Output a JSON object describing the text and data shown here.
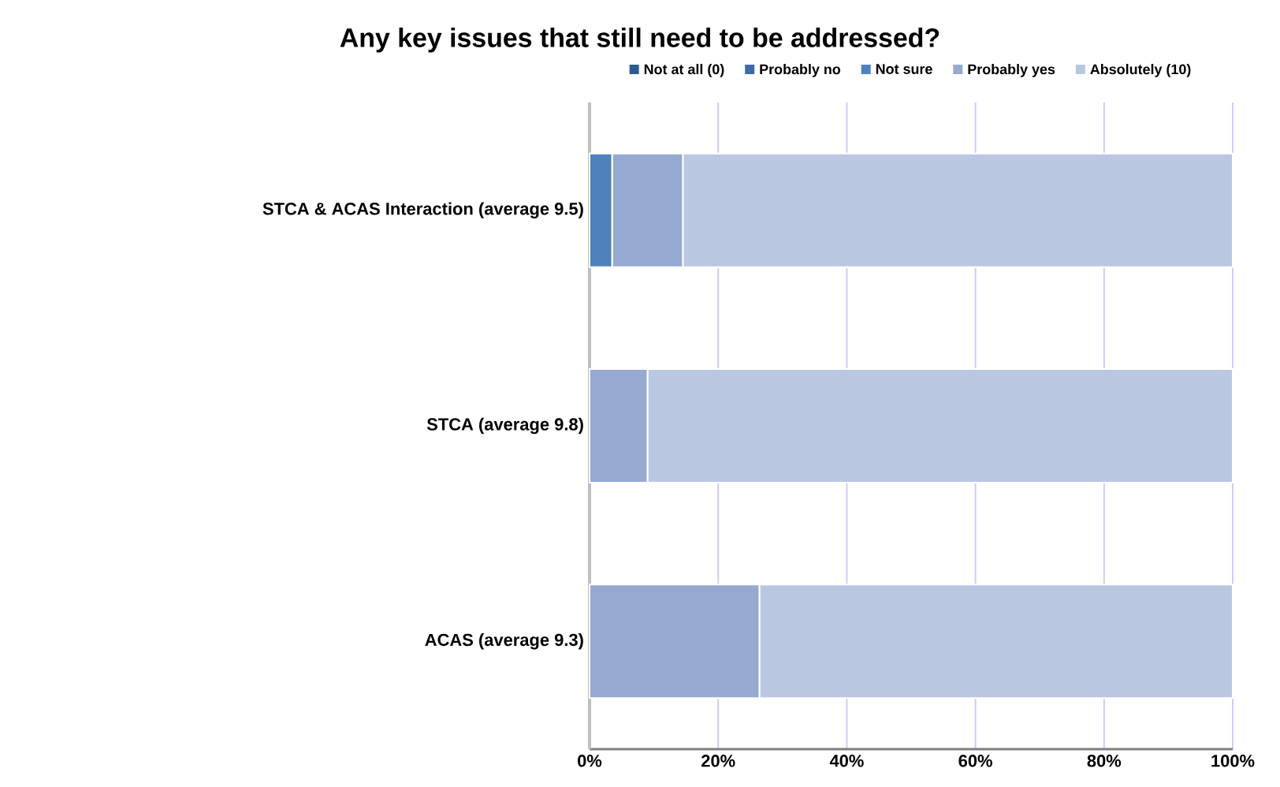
{
  "chart_data": {
    "type": "bar",
    "orientation": "horizontal",
    "stacked": true,
    "title": "Any key issues that still need to be addressed?",
    "categories": [
      "STCA & ACAS Interaction (average 9.5)",
      "STCA (average 9.8)",
      "ACAS (average 9.3)"
    ],
    "series": [
      {
        "name": "Not at all (0)",
        "color": "#2c5a91",
        "values": [
          0,
          0,
          0
        ]
      },
      {
        "name": "Probably no",
        "color": "#3c6ba8",
        "values": [
          0,
          0,
          0
        ]
      },
      {
        "name": "Not sure",
        "color": "#4f81bd",
        "values": [
          3.5,
          0,
          0
        ]
      },
      {
        "name": "Probably yes",
        "color": "#95a9d1",
        "values": [
          11,
          9,
          26.4
        ]
      },
      {
        "name": "Absolutely (10)",
        "color": "#bac7e1",
        "values": [
          85.5,
          91,
          73.6
        ]
      }
    ],
    "xlim": [
      0,
      100
    ],
    "xticks": [
      {
        "value": 0,
        "label": "0%"
      },
      {
        "value": 20,
        "label": "20%"
      },
      {
        "value": 40,
        "label": "40%"
      },
      {
        "value": 60,
        "label": "60%"
      },
      {
        "value": 80,
        "label": "80%"
      },
      {
        "value": 100,
        "label": "100%"
      }
    ],
    "grid": "x",
    "legend": "top"
  }
}
